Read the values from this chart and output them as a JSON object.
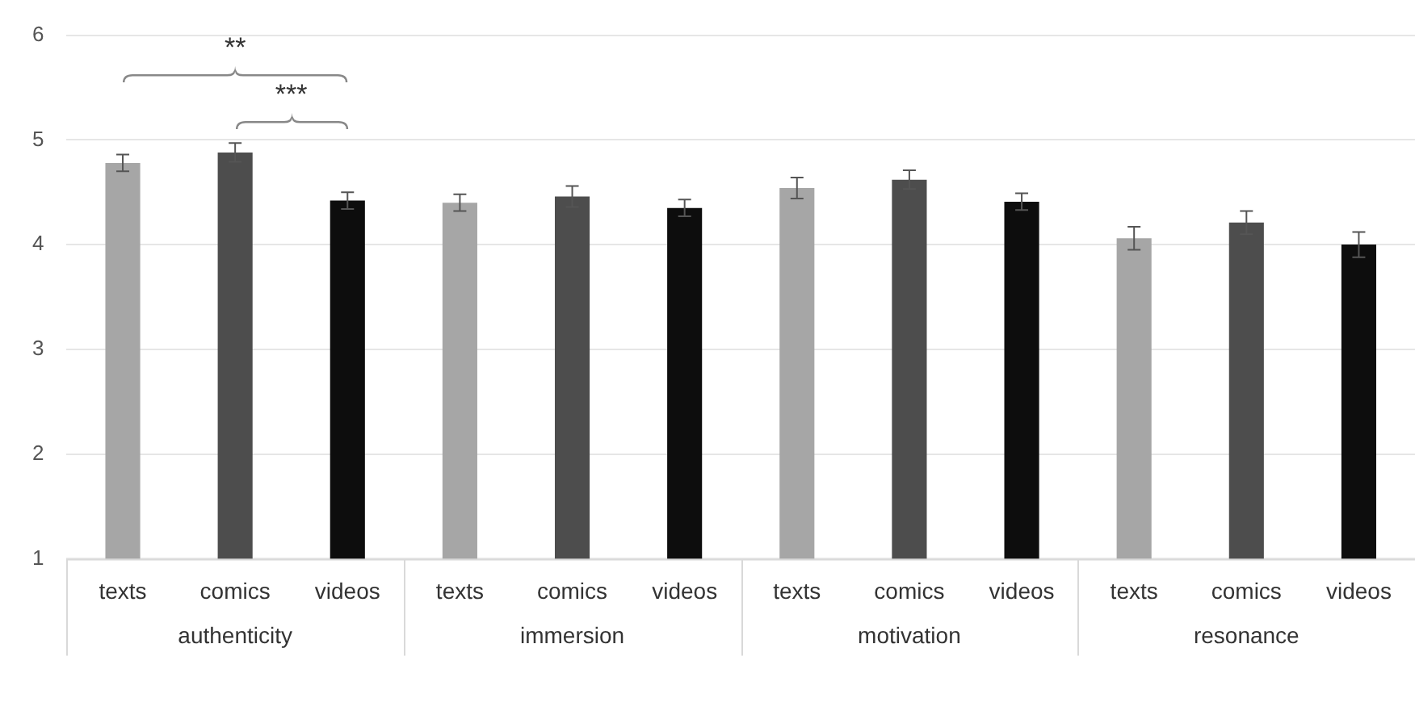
{
  "chart_data": {
    "type": "bar",
    "categories": [
      "authenticity",
      "immersion",
      "motivation",
      "resonance"
    ],
    "series": [
      {
        "name": "texts",
        "color": "#a6a6a6",
        "values": [
          4.78,
          4.4,
          4.54,
          4.06
        ],
        "errors": [
          0.08,
          0.08,
          0.1,
          0.11
        ]
      },
      {
        "name": "comics",
        "color": "#4d4d4d",
        "values": [
          4.88,
          4.46,
          4.62,
          4.21
        ],
        "errors": [
          0.09,
          0.1,
          0.09,
          0.11
        ]
      },
      {
        "name": "videos",
        "color": "#0d0d0d",
        "values": [
          4.42,
          4.35,
          4.41,
          4.0
        ],
        "errors": [
          0.08,
          0.08,
          0.08,
          0.12
        ]
      }
    ],
    "ylim": [
      1,
      6
    ],
    "yticks": [
      1,
      2,
      3,
      4,
      5,
      6
    ],
    "grid": "y",
    "legend": false,
    "annotations": [
      "**",
      "***"
    ]
  }
}
